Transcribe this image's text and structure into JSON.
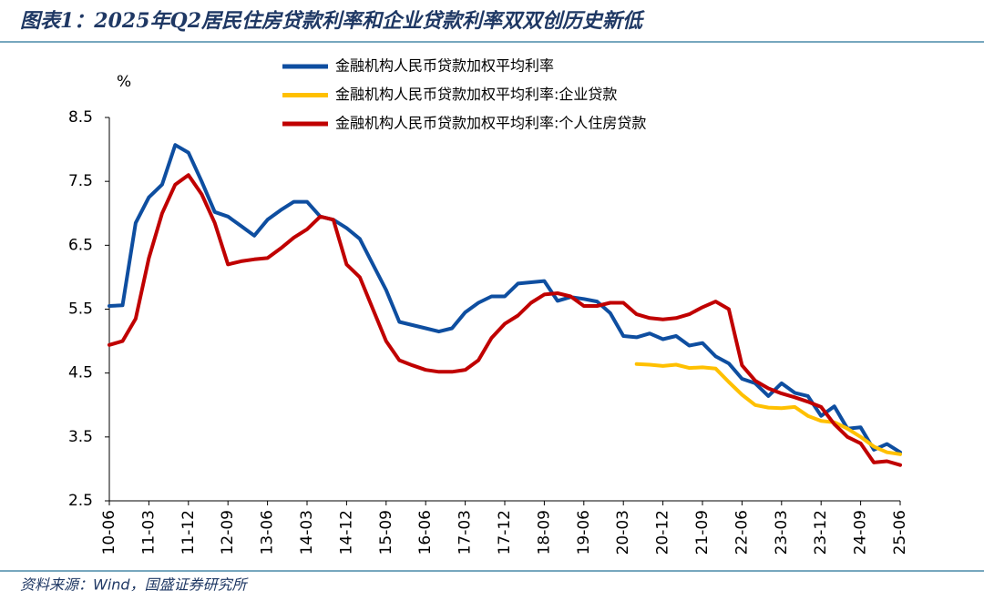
{
  "chart_data": {
    "type": "line",
    "title": "图表1：2025年Q2居民住房贷款利率和企业贷款利率双双创历史新低",
    "source": "资料来源：Wind，国盛证券研究所",
    "ylabel": "%",
    "categories": [
      "10-06",
      null,
      null,
      "11-03",
      null,
      null,
      "11-12",
      null,
      null,
      "12-09",
      null,
      null,
      "13-06",
      null,
      null,
      "14-03",
      null,
      null,
      "14-12",
      null,
      null,
      "15-09",
      null,
      null,
      "16-06",
      null,
      null,
      "17-03",
      null,
      null,
      "17-12",
      null,
      null,
      "18-09",
      null,
      null,
      "19-06",
      null,
      null,
      "20-03",
      null,
      null,
      "20-12",
      null,
      null,
      "21-09",
      null,
      null,
      "22-06",
      null,
      null,
      "23-03",
      null,
      null,
      "23-12",
      null,
      null,
      "24-09",
      null,
      null,
      "25-06"
    ],
    "ylim": [
      2.5,
      8.5
    ],
    "yticks": [
      2.5,
      3.5,
      4.5,
      5.5,
      6.5,
      7.5,
      8.5
    ],
    "grid": false,
    "series": [
      {
        "name": "金融机构人民币贷款加权平均利率",
        "color": "#0e4ea0",
        "values": [
          5.55,
          5.56,
          6.85,
          7.25,
          7.45,
          8.07,
          7.95,
          7.5,
          7.02,
          6.95,
          6.8,
          6.65,
          6.9,
          7.05,
          7.18,
          7.18,
          6.95,
          6.9,
          6.77,
          6.6,
          6.2,
          5.8,
          5.3,
          5.25,
          5.2,
          5.15,
          5.2,
          5.45,
          5.6,
          5.7,
          5.7,
          5.9,
          5.92,
          5.94,
          5.63,
          5.69,
          5.66,
          5.62,
          5.44,
          5.08,
          5.06,
          5.12,
          5.03,
          5.08,
          4.93,
          4.97,
          4.76,
          4.65,
          4.41,
          4.34,
          4.14,
          4.34,
          4.19,
          4.14,
          3.83,
          3.98,
          3.63,
          3.65,
          3.3,
          3.39,
          3.26
        ]
      },
      {
        "name": "金融机构人民币贷款加权平均利率:企业贷款",
        "color": "#ffc000",
        "values": [
          null,
          null,
          null,
          null,
          null,
          null,
          null,
          null,
          null,
          null,
          null,
          null,
          null,
          null,
          null,
          null,
          null,
          null,
          null,
          null,
          null,
          null,
          null,
          null,
          null,
          null,
          null,
          null,
          null,
          null,
          null,
          null,
          null,
          null,
          null,
          null,
          null,
          null,
          null,
          null,
          4.64,
          4.63,
          4.61,
          4.63,
          4.58,
          4.59,
          4.57,
          4.36,
          4.16,
          4.0,
          3.96,
          3.95,
          3.97,
          3.83,
          3.75,
          3.73,
          3.63,
          3.5,
          3.35,
          3.26,
          3.23
        ]
      },
      {
        "name": "金融机构人民币贷款加权平均利率:个人住房贷款",
        "color": "#c00000",
        "values": [
          4.94,
          5.0,
          5.35,
          6.3,
          7.0,
          7.45,
          7.6,
          7.3,
          6.85,
          6.2,
          6.25,
          6.28,
          6.3,
          6.45,
          6.62,
          6.75,
          6.95,
          6.9,
          6.2,
          6.0,
          5.5,
          5.0,
          4.7,
          4.62,
          4.55,
          4.52,
          4.52,
          4.55,
          4.7,
          5.05,
          5.27,
          5.4,
          5.6,
          5.73,
          5.75,
          5.7,
          5.55,
          5.55,
          5.6,
          5.6,
          5.42,
          5.36,
          5.34,
          5.36,
          5.42,
          5.53,
          5.62,
          5.5,
          4.62,
          4.38,
          4.26,
          4.18,
          4.12,
          4.05,
          3.97,
          3.7,
          3.5,
          3.4,
          3.1,
          3.12,
          3.06
        ]
      }
    ]
  }
}
